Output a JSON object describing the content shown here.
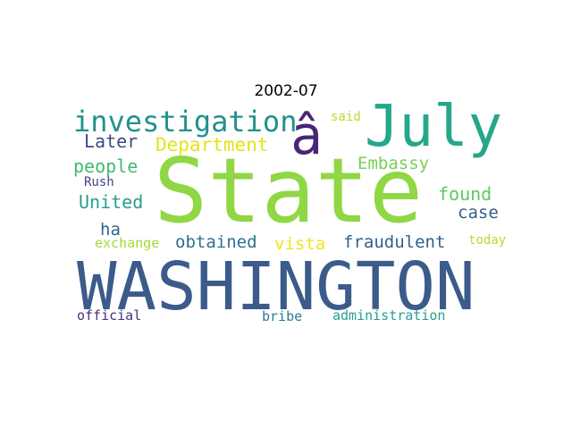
{
  "title": "2002-07",
  "words": {
    "state": {
      "text": "State",
      "color": "#8fd744"
    },
    "washington": {
      "text": "WASHINGTON",
      "color": "#3b5b8a"
    },
    "july": {
      "text": "July",
      "color": "#26a68a"
    },
    "a": {
      "text": "â",
      "color": "#482677"
    },
    "investigation": {
      "text": "investigation",
      "color": "#21918c"
    },
    "department": {
      "text": "Department",
      "color": "#e3e418"
    },
    "later": {
      "text": "Later",
      "color": "#3f4a8a"
    },
    "people": {
      "text": "people",
      "color": "#3dbc74"
    },
    "embassy": {
      "text": "Embassy",
      "color": "#7ad151"
    },
    "rush": {
      "text": "Rush",
      "color": "#414487"
    },
    "united": {
      "text": "United",
      "color": "#2a9d8f"
    },
    "found": {
      "text": "found",
      "color": "#5ec962"
    },
    "case": {
      "text": "case",
      "color": "#355f8d"
    },
    "ha": {
      "text": "ha",
      "color": "#31688e"
    },
    "obtained": {
      "text": "obtained",
      "color": "#2c728e"
    },
    "vista": {
      "text": "vista",
      "color": "#f1e51d"
    },
    "fraudulent": {
      "text": "fraudulent",
      "color": "#34608d"
    },
    "exchange": {
      "text": "exchange",
      "color": "#a2da37"
    },
    "today": {
      "text": "today",
      "color": "#b5de2b"
    },
    "said": {
      "text": "said",
      "color": "#b8de29"
    },
    "official": {
      "text": "official",
      "color": "#46337e"
    },
    "bribe": {
      "text": "bribe",
      "color": "#287c8e"
    },
    "administration": {
      "text": "administration",
      "color": "#2a9d8f"
    }
  }
}
